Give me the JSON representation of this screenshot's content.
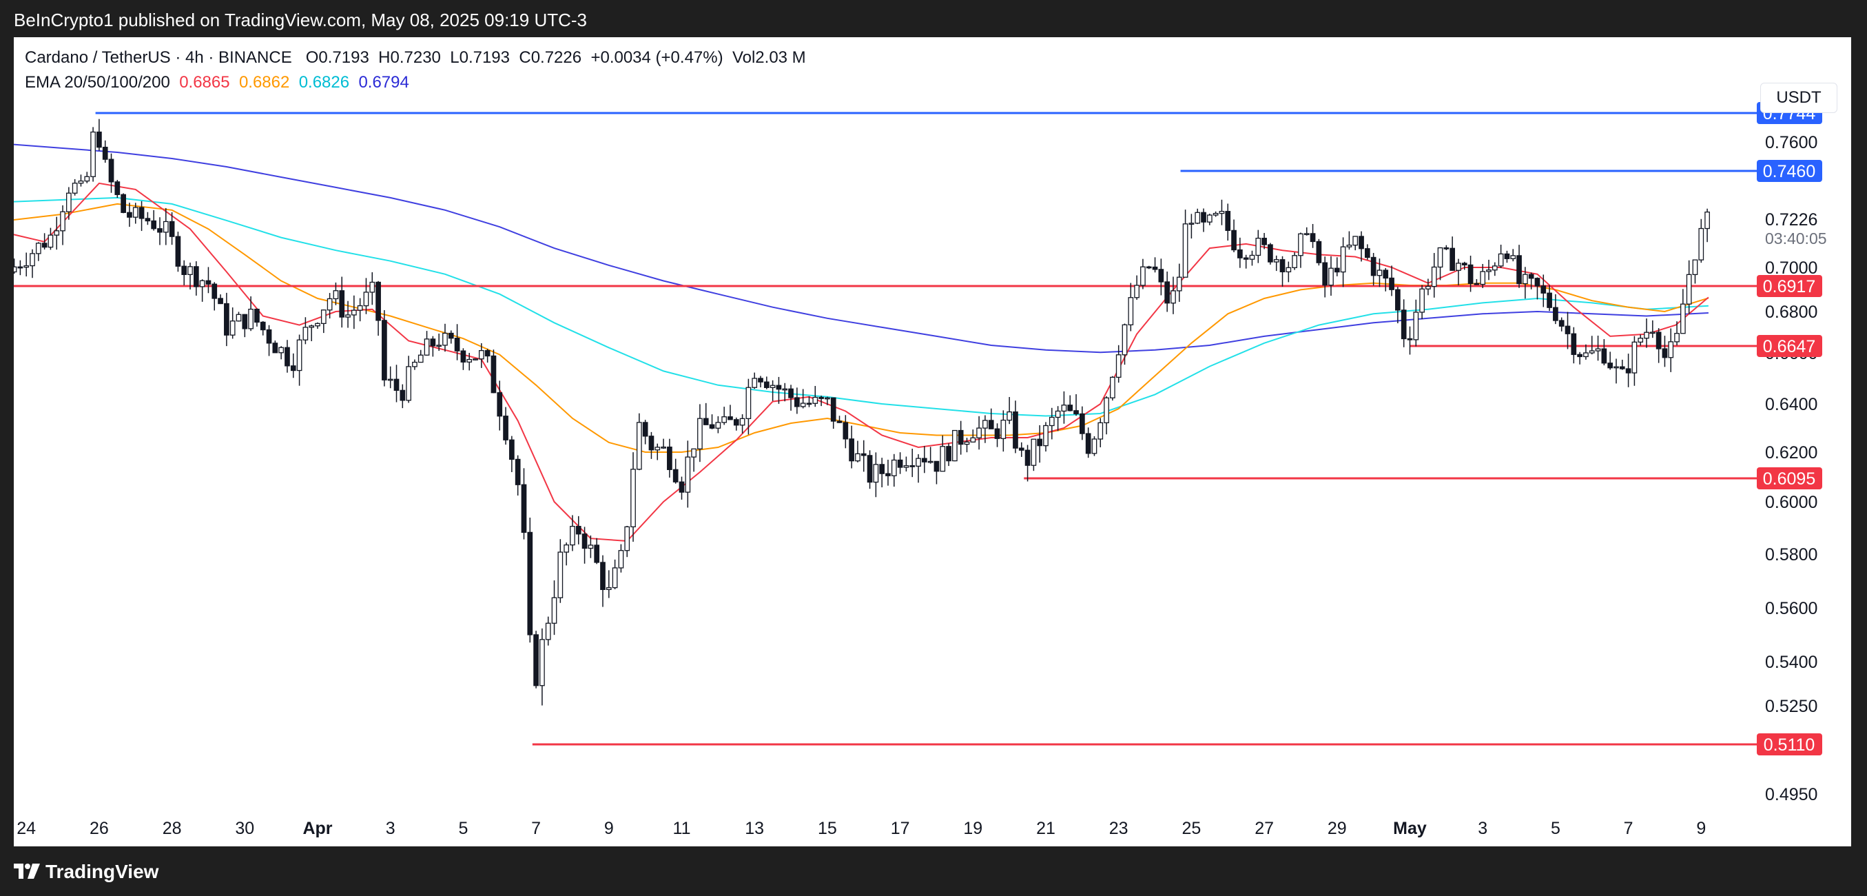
{
  "publisher": "BeInCrypto1 published on TradingView.com, May 08, 2025 09:19 UTC-3",
  "brand": "TradingView",
  "header": {
    "symbol": "Cardano / TetherUS · 4h · BINANCE",
    "open": "O0.7193",
    "high": "H0.7230",
    "low": "L0.7193",
    "close": "C0.7226",
    "change": "+0.0034 (+0.47%)",
    "volume": "Vol2.03 M",
    "ema_label": "EMA 20/50/100/200",
    "ema_values": [
      "0.6865",
      "0.6862",
      "0.6826",
      "0.6794"
    ],
    "currency": "USDT"
  },
  "colors": {
    "up": "#131722",
    "down": "#131722",
    "ema20": "#f23645",
    "ema50": "#ff9800",
    "ema100": "#22e0e8",
    "ema200": "#3f3fe0",
    "resistance": "#2962ff",
    "support": "#f23645",
    "price": "#131722"
  },
  "chart_data": {
    "type": "candlestick",
    "symbol": "Cardano / TetherUS",
    "interval": "4h",
    "exchange": "BINANCE",
    "y_ticks": [
      "0.7600",
      "0.7000",
      "0.6800",
      "0.6600",
      "0.6400",
      "0.6200",
      "0.6000",
      "0.5800",
      "0.5600",
      "0.5400",
      "0.5250",
      "0.4950"
    ],
    "x_ticks": [
      "24",
      "26",
      "28",
      "30",
      "Apr",
      "3",
      "5",
      "7",
      "9",
      "11",
      "13",
      "15",
      "17",
      "19",
      "21",
      "23",
      "25",
      "27",
      "29",
      "May",
      "3",
      "5",
      "7",
      "9"
    ],
    "x_tick_days": [
      -8,
      -6,
      -4,
      -2,
      0,
      2,
      4,
      6,
      8,
      10,
      12,
      14,
      16,
      18,
      20,
      22,
      24,
      26,
      28,
      30,
      32,
      34,
      36,
      38
    ],
    "last_price": "0.7226",
    "countdown": "03:40:05",
    "levels": [
      {
        "label": "0.7744",
        "value": 0.7744,
        "kind": "resistance",
        "from_day": -6.1
      },
      {
        "label": "0.7460",
        "value": 0.746,
        "kind": "resistance",
        "from_day": 23.7
      },
      {
        "label": "0.6917",
        "value": 0.6917,
        "kind": "support",
        "from_day": -8.5
      },
      {
        "label": "0.6647",
        "value": 0.6647,
        "kind": "support",
        "from_day": 30.0
      },
      {
        "label": "0.6095",
        "value": 0.6095,
        "kind": "support",
        "from_day": 19.4
      },
      {
        "label": "0.5110",
        "value": 0.511,
        "kind": "support",
        "from_day": 5.9
      }
    ],
    "price_path": [
      [
        -8.5,
        0.698
      ],
      [
        -8.0,
        0.705
      ],
      [
        -7.3,
        0.715
      ],
      [
        -6.8,
        0.74
      ],
      [
        -6.4,
        0.735
      ],
      [
        -6.1,
        0.77
      ],
      [
        -5.8,
        0.745
      ],
      [
        -5.3,
        0.725
      ],
      [
        -4.6,
        0.722
      ],
      [
        -4.1,
        0.716
      ],
      [
        -3.7,
        0.7
      ],
      [
        -3.0,
        0.693
      ],
      [
        -2.5,
        0.673
      ],
      [
        -1.8,
        0.678
      ],
      [
        -1.2,
        0.666
      ],
      [
        -0.7,
        0.658
      ],
      [
        -0.3,
        0.672
      ],
      [
        0.4,
        0.688
      ],
      [
        0.8,
        0.678
      ],
      [
        1.2,
        0.684
      ],
      [
        1.6,
        0.69
      ],
      [
        1.8,
        0.65
      ],
      [
        2.3,
        0.645
      ],
      [
        2.8,
        0.66
      ],
      [
        3.3,
        0.668
      ],
      [
        4.0,
        0.662
      ],
      [
        4.6,
        0.66
      ],
      [
        5.2,
        0.628
      ],
      [
        5.6,
        0.6
      ],
      [
        5.9,
        0.53
      ],
      [
        6.2,
        0.548
      ],
      [
        6.7,
        0.58
      ],
      [
        7.2,
        0.59
      ],
      [
        7.6,
        0.578
      ],
      [
        8.0,
        0.565
      ],
      [
        8.4,
        0.58
      ],
      [
        8.8,
        0.632
      ],
      [
        9.2,
        0.622
      ],
      [
        9.6,
        0.62
      ],
      [
        10.0,
        0.608
      ],
      [
        10.4,
        0.628
      ],
      [
        10.8,
        0.632
      ],
      [
        11.2,
        0.63
      ],
      [
        11.6,
        0.635
      ],
      [
        12.0,
        0.655
      ],
      [
        12.4,
        0.65
      ],
      [
        12.8,
        0.645
      ],
      [
        13.2,
        0.641
      ],
      [
        13.6,
        0.64
      ],
      [
        14.0,
        0.64
      ],
      [
        14.4,
        0.628
      ],
      [
        14.8,
        0.618
      ],
      [
        15.2,
        0.61
      ],
      [
        15.6,
        0.613
      ],
      [
        16.0,
        0.618
      ],
      [
        16.5,
        0.62
      ],
      [
        17.0,
        0.616
      ],
      [
        17.5,
        0.624
      ],
      [
        18.0,
        0.63
      ],
      [
        18.5,
        0.628
      ],
      [
        19.0,
        0.632
      ],
      [
        19.4,
        0.615
      ],
      [
        19.9,
        0.626
      ],
      [
        20.4,
        0.638
      ],
      [
        20.8,
        0.634
      ],
      [
        21.2,
        0.622
      ],
      [
        21.6,
        0.64
      ],
      [
        22.0,
        0.665
      ],
      [
        22.5,
        0.692
      ],
      [
        22.9,
        0.702
      ],
      [
        23.3,
        0.685
      ],
      [
        23.6,
        0.688
      ],
      [
        23.9,
        0.727
      ],
      [
        24.3,
        0.718
      ],
      [
        24.8,
        0.724
      ],
      [
        25.3,
        0.708
      ],
      [
        25.8,
        0.71
      ],
      [
        26.3,
        0.705
      ],
      [
        26.8,
        0.7
      ],
      [
        27.2,
        0.722
      ],
      [
        27.6,
        0.69
      ],
      [
        28.0,
        0.702
      ],
      [
        28.5,
        0.712
      ],
      [
        29.0,
        0.7
      ],
      [
        29.5,
        0.69
      ],
      [
        29.9,
        0.666
      ],
      [
        30.3,
        0.688
      ],
      [
        30.8,
        0.705
      ],
      [
        31.3,
        0.703
      ],
      [
        31.8,
        0.692
      ],
      [
        32.2,
        0.699
      ],
      [
        32.6,
        0.712
      ],
      [
        33.0,
        0.693
      ],
      [
        33.5,
        0.69
      ],
      [
        34.0,
        0.68
      ],
      [
        34.4,
        0.668
      ],
      [
        34.8,
        0.66
      ],
      [
        35.3,
        0.663
      ],
      [
        35.8,
        0.65
      ],
      [
        36.3,
        0.668
      ],
      [
        36.7,
        0.675
      ],
      [
        37.0,
        0.66
      ],
      [
        37.3,
        0.664
      ],
      [
        37.6,
        0.693
      ],
      [
        37.9,
        0.712
      ],
      [
        38.2,
        0.7226
      ]
    ],
    "ema20_path": [
      [
        -8.5,
        0.716
      ],
      [
        -7.5,
        0.712
      ],
      [
        -6.0,
        0.74
      ],
      [
        -5.0,
        0.737
      ],
      [
        -3.5,
        0.718
      ],
      [
        -2.5,
        0.698
      ],
      [
        -1.5,
        0.678
      ],
      [
        -0.5,
        0.674
      ],
      [
        0.5,
        0.68
      ],
      [
        1.5,
        0.681
      ],
      [
        2.5,
        0.667
      ],
      [
        3.5,
        0.663
      ],
      [
        4.5,
        0.659
      ],
      [
        5.5,
        0.633
      ],
      [
        6.5,
        0.6
      ],
      [
        7.5,
        0.586
      ],
      [
        8.5,
        0.585
      ],
      [
        9.5,
        0.6
      ],
      [
        10.5,
        0.612
      ],
      [
        11.5,
        0.625
      ],
      [
        12.5,
        0.641
      ],
      [
        13.5,
        0.643
      ],
      [
        14.5,
        0.637
      ],
      [
        15.5,
        0.627
      ],
      [
        16.5,
        0.622
      ],
      [
        17.5,
        0.624
      ],
      [
        18.5,
        0.626
      ],
      [
        19.5,
        0.626
      ],
      [
        20.5,
        0.63
      ],
      [
        21.5,
        0.64
      ],
      [
        22.5,
        0.67
      ],
      [
        23.5,
        0.69
      ],
      [
        24.5,
        0.709
      ],
      [
        25.5,
        0.711
      ],
      [
        26.5,
        0.708
      ],
      [
        27.5,
        0.706
      ],
      [
        28.5,
        0.705
      ],
      [
        29.5,
        0.7
      ],
      [
        30.5,
        0.693
      ],
      [
        31.5,
        0.7
      ],
      [
        32.5,
        0.7
      ],
      [
        33.5,
        0.697
      ],
      [
        34.5,
        0.682
      ],
      [
        35.5,
        0.669
      ],
      [
        36.5,
        0.67
      ],
      [
        37.3,
        0.674
      ],
      [
        38.2,
        0.6865
      ]
    ],
    "ema50_path": [
      [
        -8.5,
        0.722
      ],
      [
        -7.0,
        0.725
      ],
      [
        -5.5,
        0.73
      ],
      [
        -4.0,
        0.727
      ],
      [
        -3.0,
        0.718
      ],
      [
        -2.0,
        0.706
      ],
      [
        -1.0,
        0.694
      ],
      [
        0.0,
        0.686
      ],
      [
        1.0,
        0.682
      ],
      [
        2.0,
        0.678
      ],
      [
        3.0,
        0.673
      ],
      [
        4.0,
        0.668
      ],
      [
        5.0,
        0.661
      ],
      [
        6.0,
        0.648
      ],
      [
        7.0,
        0.634
      ],
      [
        8.0,
        0.624
      ],
      [
        9.0,
        0.62
      ],
      [
        10.0,
        0.62
      ],
      [
        11.0,
        0.622
      ],
      [
        12.0,
        0.628
      ],
      [
        13.0,
        0.632
      ],
      [
        14.0,
        0.634
      ],
      [
        15.0,
        0.631
      ],
      [
        16.0,
        0.628
      ],
      [
        17.0,
        0.627
      ],
      [
        18.0,
        0.627
      ],
      [
        19.0,
        0.627
      ],
      [
        20.0,
        0.628
      ],
      [
        21.0,
        0.631
      ],
      [
        22.0,
        0.638
      ],
      [
        23.0,
        0.652
      ],
      [
        24.0,
        0.666
      ],
      [
        25.0,
        0.679
      ],
      [
        26.0,
        0.686
      ],
      [
        27.0,
        0.69
      ],
      [
        28.0,
        0.692
      ],
      [
        29.0,
        0.693
      ],
      [
        30.0,
        0.692
      ],
      [
        31.0,
        0.692
      ],
      [
        32.0,
        0.693
      ],
      [
        33.0,
        0.693
      ],
      [
        34.0,
        0.69
      ],
      [
        35.0,
        0.685
      ],
      [
        36.0,
        0.682
      ],
      [
        37.0,
        0.68
      ],
      [
        38.2,
        0.6862
      ]
    ],
    "ema100_path": [
      [
        -8.5,
        0.731
      ],
      [
        -7.0,
        0.732
      ],
      [
        -5.5,
        0.733
      ],
      [
        -4.0,
        0.73
      ],
      [
        -2.5,
        0.722
      ],
      [
        -1.0,
        0.714
      ],
      [
        0.5,
        0.708
      ],
      [
        2.0,
        0.703
      ],
      [
        3.5,
        0.697
      ],
      [
        5.0,
        0.688
      ],
      [
        6.5,
        0.675
      ],
      [
        8.0,
        0.664
      ],
      [
        9.5,
        0.654
      ],
      [
        11.0,
        0.648
      ],
      [
        12.5,
        0.645
      ],
      [
        14.0,
        0.643
      ],
      [
        15.5,
        0.64
      ],
      [
        17.0,
        0.638
      ],
      [
        18.5,
        0.636
      ],
      [
        20.0,
        0.635
      ],
      [
        21.5,
        0.636
      ],
      [
        23.0,
        0.644
      ],
      [
        24.5,
        0.656
      ],
      [
        26.0,
        0.666
      ],
      [
        27.5,
        0.674
      ],
      [
        29.0,
        0.679
      ],
      [
        30.5,
        0.681
      ],
      [
        32.0,
        0.684
      ],
      [
        33.5,
        0.686
      ],
      [
        35.0,
        0.684
      ],
      [
        36.5,
        0.681
      ],
      [
        38.2,
        0.6826
      ]
    ],
    "ema200_path": [
      [
        -8.5,
        0.759
      ],
      [
        -7.0,
        0.757
      ],
      [
        -5.5,
        0.755
      ],
      [
        -4.0,
        0.752
      ],
      [
        -2.5,
        0.748
      ],
      [
        -1.0,
        0.743
      ],
      [
        0.5,
        0.738
      ],
      [
        2.0,
        0.733
      ],
      [
        3.5,
        0.727
      ],
      [
        5.0,
        0.719
      ],
      [
        6.5,
        0.709
      ],
      [
        8.0,
        0.701
      ],
      [
        9.5,
        0.694
      ],
      [
        11.0,
        0.688
      ],
      [
        12.5,
        0.682
      ],
      [
        14.0,
        0.677
      ],
      [
        15.5,
        0.673
      ],
      [
        17.0,
        0.669
      ],
      [
        18.5,
        0.665
      ],
      [
        20.0,
        0.663
      ],
      [
        21.5,
        0.662
      ],
      [
        23.0,
        0.663
      ],
      [
        24.5,
        0.665
      ],
      [
        26.0,
        0.669
      ],
      [
        27.5,
        0.672
      ],
      [
        29.0,
        0.675
      ],
      [
        30.5,
        0.677
      ],
      [
        32.0,
        0.679
      ],
      [
        33.5,
        0.68
      ],
      [
        35.0,
        0.679
      ],
      [
        36.5,
        0.678
      ],
      [
        38.2,
        0.6794
      ]
    ]
  }
}
